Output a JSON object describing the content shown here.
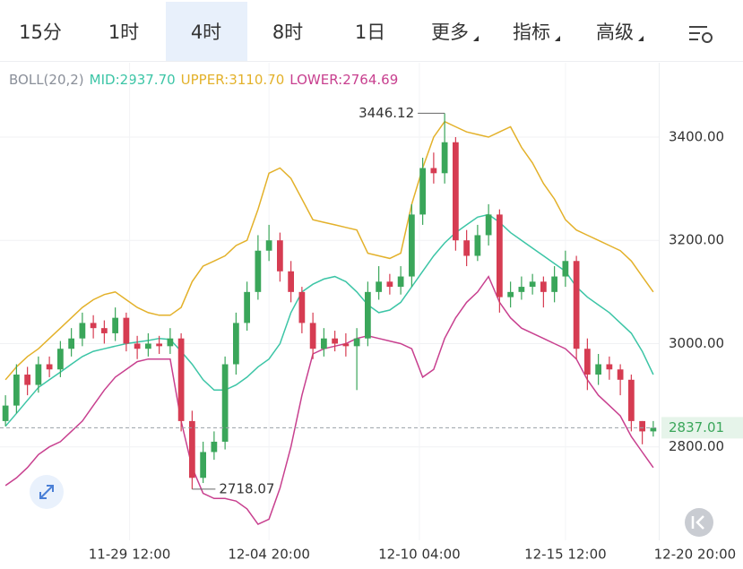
{
  "tabs": [
    "15分",
    "1时",
    "4时",
    "8时",
    "1日",
    "更多",
    "指标",
    "高级"
  ],
  "selected_tab": 2,
  "chart_data": {
    "type": "candlestick",
    "legend": [
      "BOLL(20,2)",
      "MID:2937.70",
      "UPPER:3110.70",
      "LOWER:2764.69"
    ],
    "legend_colors": [
      "#8a8f99",
      "#3cc5a6",
      "#e3b12a",
      "#c8408f"
    ],
    "up_color": "#3aa65a",
    "down_color": "#d63c52",
    "open": [
      2850,
      2880,
      2940,
      2920,
      2960,
      2950,
      2990,
      3010,
      3040,
      3030,
      3020,
      3050,
      3000,
      2990,
      3000,
      2995,
      3010,
      2850,
      2740,
      2790,
      2810,
      2960,
      3040,
      3100,
      3180,
      3200,
      3140,
      3100,
      3040,
      2990,
      3010,
      3000,
      2995,
      3010,
      3100,
      3120,
      3110,
      3130,
      3250,
      3340,
      3330,
      3390,
      3200,
      3170,
      3210,
      3250,
      3090,
      3100,
      3110,
      3120,
      3100,
      3130,
      3160,
      2990,
      2940,
      2960,
      2950,
      2930,
      2850,
      2830
    ],
    "high": [
      2900,
      2960,
      2955,
      2975,
      2975,
      3005,
      3030,
      3060,
      3055,
      3045,
      3070,
      3060,
      3015,
      3020,
      3015,
      3030,
      3020,
      2870,
      2810,
      2830,
      2975,
      3060,
      3120,
      3210,
      3230,
      3215,
      3160,
      3110,
      3060,
      3030,
      3025,
      3020,
      3030,
      3120,
      3150,
      3135,
      3150,
      3270,
      3360,
      3370,
      3446.12,
      3400,
      3220,
      3230,
      3270,
      3260,
      3120,
      3130,
      3135,
      3130,
      3150,
      3180,
      3170,
      3010,
      2980,
      2975,
      2960,
      2940,
      2850,
      2850
    ],
    "low": [
      2840,
      2865,
      2900,
      2905,
      2935,
      2935,
      2975,
      2995,
      3010,
      3000,
      3005,
      2985,
      2970,
      2975,
      2980,
      2980,
      2830,
      2718.07,
      2730,
      2775,
      2795,
      2940,
      3025,
      3085,
      3160,
      3120,
      3080,
      3020,
      2970,
      2975,
      2985,
      2975,
      2910,
      2995,
      3085,
      3095,
      3095,
      3110,
      3230,
      3310,
      3310,
      3180,
      3150,
      3160,
      3190,
      3060,
      3070,
      3085,
      3095,
      3070,
      3080,
      3110,
      2970,
      2910,
      2920,
      2930,
      2900,
      2830,
      2805,
      2820
    ],
    "close": [
      2880,
      2940,
      2920,
      2960,
      2950,
      2990,
      3010,
      3040,
      3030,
      3020,
      3050,
      3000,
      2990,
      3000,
      2995,
      3010,
      2850,
      2740,
      2790,
      2810,
      2960,
      3040,
      3100,
      3180,
      3200,
      3140,
      3100,
      3040,
      2990,
      3010,
      3000,
      2995,
      3010,
      3100,
      3120,
      3110,
      3130,
      3250,
      3340,
      3330,
      3390,
      3200,
      3170,
      3210,
      3250,
      3090,
      3100,
      3110,
      3120,
      3100,
      3130,
      3160,
      2990,
      2940,
      2960,
      2950,
      2930,
      2850,
      2830,
      2837.01
    ],
    "bands": [
      {
        "color": "#e3b12a",
        "values": [
          2930,
          2955,
          2975,
          2990,
          3010,
          3030,
          3050,
          3070,
          3085,
          3095,
          3100,
          3085,
          3070,
          3060,
          3055,
          3055,
          3070,
          3120,
          3150,
          3160,
          3170,
          3190,
          3200,
          3260,
          3330,
          3340,
          3320,
          3280,
          3240,
          3235,
          3230,
          3225,
          3220,
          3175,
          3170,
          3165,
          3175,
          3270,
          3340,
          3400,
          3430,
          3420,
          3410,
          3405,
          3400,
          3410,
          3420,
          3380,
          3350,
          3310,
          3280,
          3240,
          3220,
          3210,
          3200,
          3190,
          3180,
          3160,
          3130,
          3100
        ]
      },
      {
        "color": "#3cc5a6",
        "values": [
          2840,
          2865,
          2890,
          2915,
          2930,
          2945,
          2960,
          2975,
          2985,
          2990,
          2995,
          3000,
          3003,
          3006,
          3010,
          3008,
          2985,
          2960,
          2930,
          2910,
          2910,
          2920,
          2935,
          2955,
          2970,
          3000,
          3060,
          3100,
          3115,
          3125,
          3130,
          3120,
          3100,
          3075,
          3060,
          3065,
          3080,
          3110,
          3140,
          3170,
          3195,
          3215,
          3230,
          3245,
          3250,
          3235,
          3215,
          3200,
          3185,
          3170,
          3155,
          3140,
          3110,
          3090,
          3075,
          3060,
          3040,
          3020,
          2985,
          2940
        ]
      },
      {
        "color": "#c8408f",
        "values": [
          2725,
          2740,
          2760,
          2785,
          2800,
          2810,
          2830,
          2850,
          2880,
          2910,
          2935,
          2950,
          2965,
          2970,
          2970,
          2970,
          2850,
          2760,
          2710,
          2700,
          2700,
          2695,
          2680,
          2650,
          2660,
          2720,
          2800,
          2900,
          2980,
          2990,
          2995,
          3000,
          3010,
          3015,
          3010,
          3005,
          3000,
          2990,
          2935,
          2950,
          3010,
          3050,
          3080,
          3100,
          3130,
          3080,
          3050,
          3030,
          3020,
          3010,
          3000,
          2990,
          2970,
          2930,
          2900,
          2880,
          2860,
          2820,
          2790,
          2760
        ]
      }
    ],
    "ylim": [
      2619,
      3544
    ],
    "yticks": [
      {
        "value": 2800,
        "label": "2800.00"
      },
      {
        "value": 3000,
        "label": "3000.00"
      },
      {
        "value": 3200,
        "label": "3200.00"
      },
      {
        "value": 3400,
        "label": "3400.00"
      }
    ],
    "xlim": [
      -0.5,
      59.5
    ],
    "xticks": [
      {
        "value": 11.3,
        "label": "11-29 12:00"
      },
      {
        "value": 24,
        "label": "12-04 20:00"
      },
      {
        "value": 37.7,
        "label": "12-10 04:00"
      },
      {
        "value": 51,
        "label": "12-15 12:00"
      },
      {
        "value": 62.8,
        "label": "12-20 20:00"
      }
    ],
    "grid": true
  }
}
